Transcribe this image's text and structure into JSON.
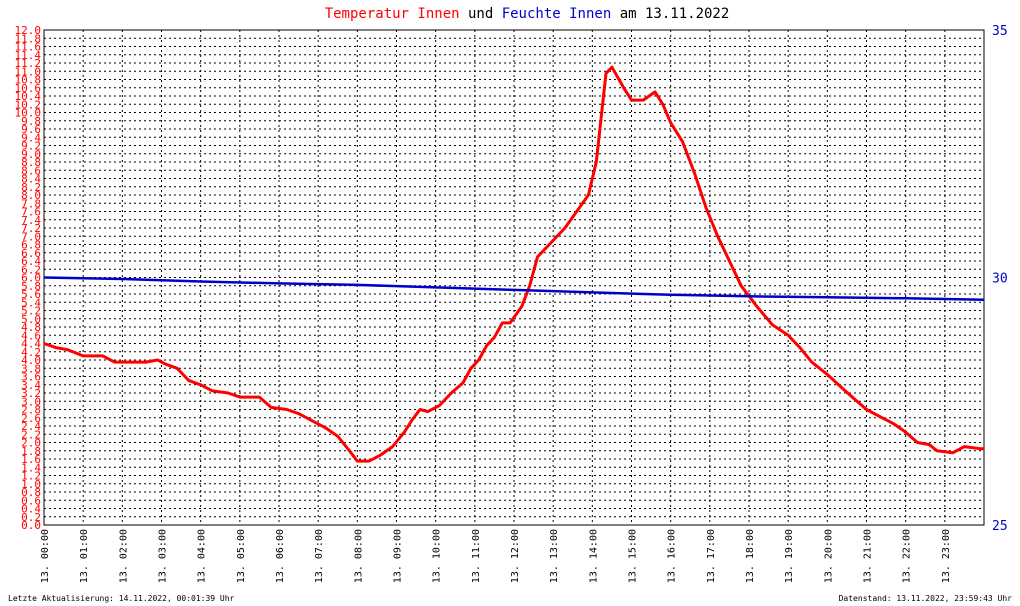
{
  "title": {
    "part1": "Temperatur Innen",
    "part2": " und ",
    "part3": "Feuchte Innen",
    "part4": " am 13.11.2022",
    "color1": "#ff0000",
    "color2": "#000000",
    "color3": "#0000cc",
    "color4": "#000000"
  },
  "footer": {
    "left": "Letzte Aktualisierung: 14.11.2022, 00:01:39 Uhr",
    "right": "Datenstand: 13.11.2022, 23:59:43 Uhr"
  },
  "chart_data": {
    "type": "line",
    "grid": true,
    "x_ticks": [
      "13. 00:00",
      "13. 01:00",
      "13. 02:00",
      "13. 03:00",
      "13. 04:00",
      "13. 05:00",
      "13. 06:00",
      "13. 07:00",
      "13. 08:00",
      "13. 09:00",
      "13. 10:00",
      "13. 11:00",
      "13. 12:00",
      "13. 13:00",
      "13. 14:00",
      "13. 15:00",
      "13. 16:00",
      "13. 17:00",
      "13. 18:00",
      "13. 19:00",
      "13. 20:00",
      "13. 21:00",
      "13. 22:00",
      "13. 23:00"
    ],
    "xlim": [
      0,
      24
    ],
    "y_left": {
      "lim": [
        0,
        12
      ],
      "ticks": [
        "0.0",
        "0.2",
        "0.4",
        "0.6",
        "0.8",
        "1.0",
        "1.2",
        "1.4",
        "1.6",
        "1.8",
        "2.0",
        "2.2",
        "2.4",
        "2.6",
        "2.8",
        "3.0",
        "3.2",
        "3.4",
        "3.6",
        "3.8",
        "4.0",
        "4.2",
        "4.4",
        "4.6",
        "4.8",
        "5.0",
        "5.2",
        "5.4",
        "5.6",
        "5.8",
        "6.0",
        "6.2",
        "6.4",
        "6.6",
        "6.8",
        "7.0",
        "7.2",
        "7.4",
        "7.6",
        "7.8",
        "8.0",
        "8.2",
        "8.4",
        "8.6",
        "8.8",
        "9.0",
        "9.2",
        "9.4",
        "9.6",
        "9.8",
        "10.0",
        "10.2",
        "10.4",
        "10.6",
        "10.8",
        "11.0",
        "11.2",
        "11.4",
        "11.6",
        "11.8",
        "12.0"
      ],
      "color": "#ff0000"
    },
    "y_right": {
      "lim": [
        25,
        35
      ],
      "ticks": [
        "25",
        "30",
        "35"
      ],
      "color": "#0000cc"
    },
    "series": [
      {
        "axis": "left",
        "color": "#ff0000",
        "points": [
          [
            0,
            4.4
          ],
          [
            0.3,
            4.3
          ],
          [
            0.6,
            4.25
          ],
          [
            1.0,
            4.1
          ],
          [
            1.5,
            4.1
          ],
          [
            1.8,
            3.95
          ],
          [
            2.2,
            3.95
          ],
          [
            2.6,
            3.95
          ],
          [
            2.9,
            4.0
          ],
          [
            3.1,
            3.9
          ],
          [
            3.4,
            3.8
          ],
          [
            3.7,
            3.5
          ],
          [
            4.0,
            3.4
          ],
          [
            4.3,
            3.25
          ],
          [
            4.7,
            3.2
          ],
          [
            5.0,
            3.1
          ],
          [
            5.5,
            3.1
          ],
          [
            5.8,
            2.85
          ],
          [
            6.2,
            2.8
          ],
          [
            6.5,
            2.7
          ],
          [
            6.9,
            2.5
          ],
          [
            7.2,
            2.35
          ],
          [
            7.5,
            2.15
          ],
          [
            7.8,
            1.8
          ],
          [
            8.0,
            1.55
          ],
          [
            8.3,
            1.55
          ],
          [
            8.6,
            1.7
          ],
          [
            8.9,
            1.9
          ],
          [
            9.2,
            2.25
          ],
          [
            9.4,
            2.55
          ],
          [
            9.6,
            2.8
          ],
          [
            9.8,
            2.75
          ],
          [
            10.1,
            2.9
          ],
          [
            10.4,
            3.2
          ],
          [
            10.7,
            3.45
          ],
          [
            10.9,
            3.8
          ],
          [
            11.1,
            4.0
          ],
          [
            11.3,
            4.35
          ],
          [
            11.5,
            4.55
          ],
          [
            11.7,
            4.9
          ],
          [
            11.9,
            4.9
          ],
          [
            12.2,
            5.3
          ],
          [
            12.4,
            5.8
          ],
          [
            12.6,
            6.5
          ],
          [
            12.9,
            6.8
          ],
          [
            13.3,
            7.2
          ],
          [
            13.6,
            7.6
          ],
          [
            13.9,
            8.0
          ],
          [
            14.1,
            8.8
          ],
          [
            14.35,
            10.95
          ],
          [
            14.5,
            11.1
          ],
          [
            14.8,
            10.6
          ],
          [
            15.0,
            10.3
          ],
          [
            15.3,
            10.3
          ],
          [
            15.6,
            10.5
          ],
          [
            15.8,
            10.2
          ],
          [
            16.0,
            9.75
          ],
          [
            16.3,
            9.3
          ],
          [
            16.6,
            8.55
          ],
          [
            16.9,
            7.7
          ],
          [
            17.2,
            7.0
          ],
          [
            17.5,
            6.4
          ],
          [
            17.8,
            5.8
          ],
          [
            18.2,
            5.3
          ],
          [
            18.6,
            4.85
          ],
          [
            19.0,
            4.6
          ],
          [
            19.3,
            4.3
          ],
          [
            19.6,
            3.95
          ],
          [
            20.0,
            3.65
          ],
          [
            20.4,
            3.3
          ],
          [
            20.7,
            3.05
          ],
          [
            21.0,
            2.8
          ],
          [
            21.4,
            2.6
          ],
          [
            21.7,
            2.45
          ],
          [
            22.0,
            2.25
          ],
          [
            22.3,
            2.0
          ],
          [
            22.6,
            1.95
          ],
          [
            22.8,
            1.8
          ],
          [
            23.2,
            1.75
          ],
          [
            23.5,
            1.9
          ],
          [
            23.9,
            1.85
          ],
          [
            24.0,
            1.85
          ]
        ]
      },
      {
        "axis": "right",
        "color": "#0000cc",
        "points": [
          [
            0,
            30.0
          ],
          [
            2,
            29.97
          ],
          [
            4,
            29.92
          ],
          [
            6,
            29.88
          ],
          [
            8,
            29.85
          ],
          [
            10,
            29.8
          ],
          [
            12,
            29.75
          ],
          [
            14,
            29.7
          ],
          [
            16,
            29.65
          ],
          [
            18,
            29.62
          ],
          [
            20,
            29.6
          ],
          [
            22,
            29.58
          ],
          [
            24,
            29.55
          ]
        ]
      }
    ]
  }
}
